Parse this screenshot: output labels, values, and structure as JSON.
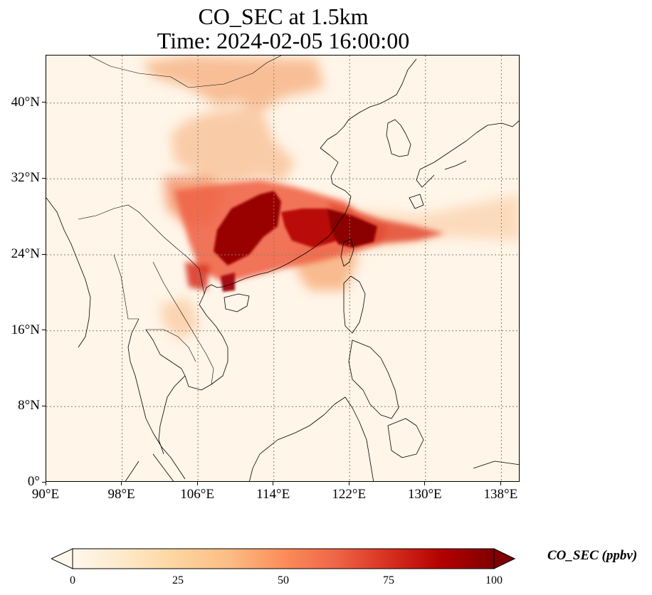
{
  "title": "CO_SEC at 1.5km",
  "subtitle": "Time: 2024-02-05 16:00:00",
  "map": {
    "lon_range": [
      90,
      140
    ],
    "lat_range": [
      0,
      45
    ],
    "lon_ticks": [
      90,
      98,
      106,
      114,
      122,
      130,
      138
    ],
    "lat_ticks": [
      0,
      8,
      16,
      24,
      32,
      40
    ],
    "lon_tick_labels": [
      "90°E",
      "98°E",
      "106°E",
      "114°E",
      "122°E",
      "130°E",
      "138°E"
    ],
    "lat_tick_labels": [
      "0°",
      "8°N",
      "16°N",
      "24°N",
      "32°N",
      "40°N"
    ],
    "gridlines": true,
    "background_color": "#fff5e8",
    "coastline_color": "#000000"
  },
  "colorbar": {
    "label": "CO_SEC (ppbv)",
    "min": 0,
    "max": 100,
    "ticks": [
      "0",
      "25",
      "50",
      "75",
      "100"
    ],
    "extend": "both",
    "colormap": "OrRd",
    "colors": [
      "#fff7ec",
      "#fee8c8",
      "#fdd49e",
      "#fdbb84",
      "#fc8d59",
      "#ef6548",
      "#d7301f",
      "#b30000",
      "#7f0000"
    ]
  }
}
